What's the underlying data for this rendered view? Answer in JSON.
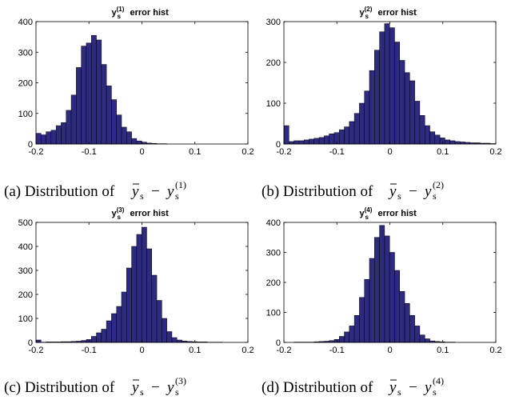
{
  "panels": [
    {
      "title_base": "y",
      "title_sub": "s",
      "title_sup": "(1)",
      "title_rest": " error hist",
      "caption_label": "(a) Distribution of",
      "caption_sup": "(1)",
      "x_ticks": [
        "-0.2",
        "-0.1",
        "0",
        "0.1",
        "0.2"
      ],
      "y_ticks": [
        "0",
        "100",
        "200",
        "300",
        "400"
      ]
    },
    {
      "title_base": "y",
      "title_sub": "s",
      "title_sup": "(2)",
      "title_rest": " error hist",
      "caption_label": "(b) Distribution of",
      "caption_sup": "(2)",
      "x_ticks": [
        "-0.2",
        "-0.1",
        "0",
        "0.1",
        "0.2"
      ],
      "y_ticks": [
        "0",
        "100",
        "200",
        "300"
      ]
    },
    {
      "title_base": "y",
      "title_sub": "s",
      "title_sup": "(3)",
      "title_rest": " error hist",
      "caption_label": "(c) Distribution of",
      "caption_sup": "(3)",
      "x_ticks": [
        "-0.2",
        "-0.1",
        "0",
        "0.1",
        "0.2"
      ],
      "y_ticks": [
        "0",
        "100",
        "200",
        "300",
        "400",
        "500"
      ]
    },
    {
      "title_base": "y",
      "title_sub": "s",
      "title_sup": "(4)",
      "title_rest": " error hist",
      "caption_label": "(d) Distribution of",
      "caption_sup": "(4)",
      "x_ticks": [
        "-0.2",
        "-0.1",
        "0",
        "0.1",
        "0.2"
      ],
      "y_ticks": [
        "0",
        "100",
        "200",
        "300",
        "400"
      ]
    }
  ],
  "chart_data": [
    {
      "type": "bar",
      "title": "y_s^(1) error hist",
      "xlim": [
        -0.2,
        0.2
      ],
      "ylim": [
        0,
        400
      ],
      "bar_color": "#2e2a80",
      "bin_edges_start": -0.2,
      "bin_width": 0.0095,
      "values": [
        35,
        30,
        40,
        45,
        60,
        70,
        110,
        160,
        250,
        320,
        330,
        355,
        340,
        260,
        190,
        145,
        95,
        55,
        40,
        18,
        10,
        6,
        3,
        2,
        1,
        1,
        0,
        0,
        0,
        0,
        0,
        0,
        0,
        0,
        0,
        0,
        0,
        0,
        0,
        0,
        0,
        0
      ]
    },
    {
      "type": "bar",
      "title": "y_s^(2) error hist",
      "xlim": [
        -0.2,
        0.2
      ],
      "ylim": [
        0,
        300
      ],
      "bar_color": "#2e2a80",
      "bin_edges_start": -0.2,
      "bin_width": 0.0095,
      "values": [
        45,
        6,
        8,
        8,
        10,
        12,
        14,
        16,
        20,
        25,
        28,
        35,
        42,
        55,
        75,
        100,
        130,
        180,
        230,
        275,
        295,
        285,
        250,
        205,
        175,
        155,
        105,
        70,
        45,
        30,
        22,
        15,
        10,
        8,
        6,
        5,
        4,
        3,
        3,
        2,
        2,
        1
      ]
    },
    {
      "type": "bar",
      "title": "y_s^(3) error hist",
      "xlim": [
        -0.2,
        0.2
      ],
      "ylim": [
        0,
        500
      ],
      "bar_color": "#2e2a80",
      "bin_edges_start": -0.2,
      "bin_width": 0.0095,
      "values": [
        10,
        1,
        2,
        2,
        2,
        3,
        3,
        4,
        5,
        8,
        12,
        25,
        40,
        55,
        90,
        120,
        150,
        210,
        310,
        400,
        450,
        480,
        390,
        280,
        175,
        100,
        45,
        20,
        10,
        6,
        4,
        3,
        2,
        2,
        1,
        1,
        1,
        0,
        0,
        0,
        0,
        0
      ]
    },
    {
      "type": "bar",
      "title": "y_s^(4) error hist",
      "xlim": [
        -0.2,
        0.2
      ],
      "ylim": [
        0,
        400
      ],
      "bar_color": "#2e2a80",
      "bin_edges_start": -0.2,
      "bin_width": 0.0095,
      "values": [
        0,
        0,
        1,
        1,
        1,
        1,
        2,
        3,
        4,
        6,
        10,
        20,
        35,
        55,
        90,
        150,
        210,
        280,
        350,
        390,
        355,
        300,
        240,
        170,
        130,
        90,
        55,
        25,
        12,
        5,
        3,
        2,
        1,
        1,
        0,
        0,
        0,
        0,
        0,
        0,
        0,
        0
      ]
    }
  ]
}
